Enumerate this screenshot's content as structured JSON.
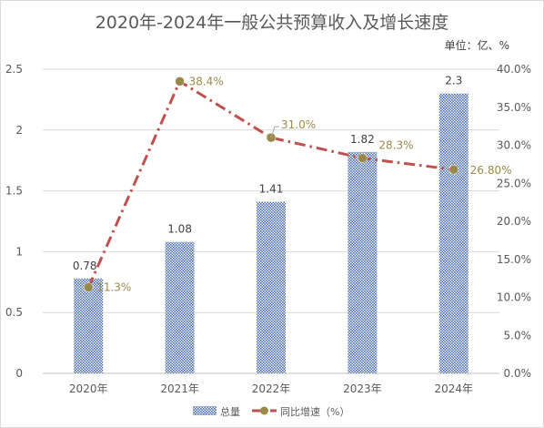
{
  "chart_data": {
    "type": "bar",
    "title": "2020年-2024年一般公共预算收入及增长速度",
    "unit_note": "单位：亿、%",
    "categories": [
      "2020年",
      "2021年",
      "2022年",
      "2023年",
      "2024年"
    ],
    "series": [
      {
        "name": "总量",
        "type": "bar",
        "axis": "left",
        "values": [
          0.78,
          1.08,
          1.41,
          1.82,
          2.3
        ],
        "labels": [
          "0.78",
          "1.08",
          "1.41",
          "1.82",
          "2.3"
        ],
        "color": "#4a6fb5"
      },
      {
        "name": "同比增速（%）",
        "type": "line",
        "axis": "right",
        "values": [
          11.3,
          38.4,
          31.0,
          28.3,
          26.8
        ],
        "labels": [
          "11.3%",
          "38.4%",
          "31.0%",
          "28.3%",
          "26.80%"
        ],
        "color": "#c0504d",
        "marker_color": "#9a8a4a"
      }
    ],
    "y_left": {
      "ylim": [
        0,
        2.5
      ],
      "ticks": [
        0,
        0.5,
        1,
        1.5,
        2,
        2.5
      ],
      "tick_labels": [
        "0",
        "0.5",
        "1",
        "1.5",
        "2",
        "2.5"
      ]
    },
    "y_right": {
      "ylim": [
        0,
        40
      ],
      "ticks": [
        0,
        5,
        10,
        15,
        20,
        25,
        30,
        35,
        40
      ],
      "tick_labels": [
        "0.0%",
        "5.0%",
        "10.0%",
        "15.0%",
        "20.0%",
        "25.0%",
        "30.0%",
        "35.0%",
        "40.0%"
      ]
    },
    "grid": true,
    "legend_position": "bottom"
  }
}
